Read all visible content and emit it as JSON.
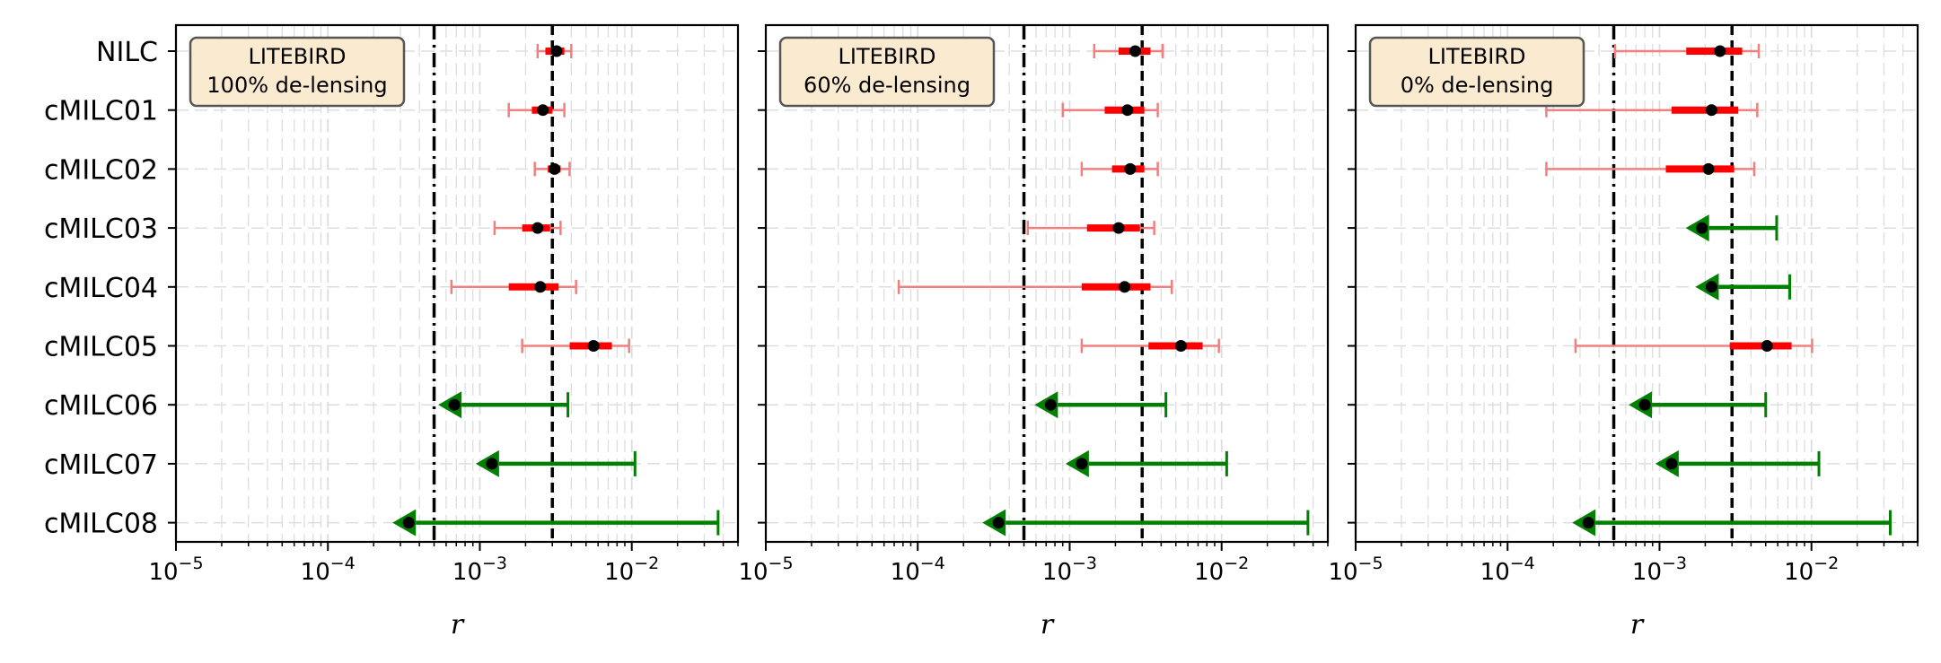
{
  "chart_data": {
    "type": "errorbar",
    "xscale": "log",
    "xlim": [
      1e-05,
      0.05
    ],
    "xticks": [
      {
        "value": 1e-05,
        "base": "10",
        "exp": "−5"
      },
      {
        "value": 0.0001,
        "base": "10",
        "exp": "−4"
      },
      {
        "value": 0.001,
        "base": "10",
        "exp": "−3"
      },
      {
        "value": 0.01,
        "base": "10",
        "exp": "−2"
      }
    ],
    "xlabel": "r",
    "categories": [
      "NILC",
      "cMILC01",
      "cMILC02",
      "cMILC03",
      "cMILC04",
      "cMILC05",
      "cMILC06",
      "cMILC07",
      "cMILC08"
    ],
    "grid": true,
    "colors": {
      "detection_bar": "#ff0000",
      "detection_bar_light": "#f08080",
      "upper_limit": "#008000",
      "point": "#000000",
      "box_fill": "#faebd0",
      "box_edge": "#555555"
    },
    "reference_lines": [
      {
        "value": 0.0005,
        "style": "dash-dot"
      },
      {
        "value": 0.003,
        "style": "dashed"
      }
    ],
    "panels": [
      {
        "box_label": [
          "LITEBIRD",
          "100% de-lensing"
        ],
        "entries": [
          {
            "category": "NILC",
            "kind": "detection",
            "value": 0.0032,
            "sigma1": [
              0.0027,
              0.0036
            ],
            "sigma2": [
              0.0024,
              0.004
            ]
          },
          {
            "category": "cMILC01",
            "kind": "detection",
            "value": 0.0026,
            "sigma1": [
              0.0022,
              0.003
            ],
            "sigma2": [
              0.00155,
              0.0036
            ]
          },
          {
            "category": "cMILC02",
            "kind": "detection",
            "value": 0.0031,
            "sigma1": [
              0.0028,
              0.0034
            ],
            "sigma2": [
              0.0023,
              0.0039
            ]
          },
          {
            "category": "cMILC03",
            "kind": "detection",
            "value": 0.0024,
            "sigma1": [
              0.0019,
              0.0029
            ],
            "sigma2": [
              0.00125,
              0.0034
            ]
          },
          {
            "category": "cMILC04",
            "kind": "detection",
            "value": 0.0025,
            "sigma1": [
              0.00155,
              0.0033
            ],
            "sigma2": [
              0.00065,
              0.0043
            ]
          },
          {
            "category": "cMILC05",
            "kind": "detection",
            "value": 0.0056,
            "sigma1": [
              0.0039,
              0.0074
            ],
            "sigma2": [
              0.0019,
              0.0096
            ]
          },
          {
            "category": "cMILC06",
            "kind": "upper_limit",
            "value": 0.00068,
            "limit": 0.0038
          },
          {
            "category": "cMILC07",
            "kind": "upper_limit",
            "value": 0.0012,
            "limit": 0.0105
          },
          {
            "category": "cMILC08",
            "kind": "upper_limit",
            "value": 0.00034,
            "limit": 0.037
          }
        ]
      },
      {
        "box_label": [
          "LITEBIRD",
          "60% de-lensing"
        ],
        "entries": [
          {
            "category": "NILC",
            "kind": "detection",
            "value": 0.0027,
            "sigma1": [
              0.0021,
              0.0034
            ],
            "sigma2": [
              0.00145,
              0.0041
            ]
          },
          {
            "category": "cMILC01",
            "kind": "detection",
            "value": 0.0024,
            "sigma1": [
              0.0017,
              0.0031
            ],
            "sigma2": [
              0.0009,
              0.0038
            ]
          },
          {
            "category": "cMILC02",
            "kind": "detection",
            "value": 0.0025,
            "sigma1": [
              0.0019,
              0.0031
            ],
            "sigma2": [
              0.0012,
              0.0038
            ]
          },
          {
            "category": "cMILC03",
            "kind": "detection",
            "value": 0.0021,
            "sigma1": [
              0.0013,
              0.0029
            ],
            "sigma2": [
              0.00053,
              0.0036
            ]
          },
          {
            "category": "cMILC04",
            "kind": "detection",
            "value": 0.0023,
            "sigma1": [
              0.0012,
              0.0034
            ],
            "sigma2": [
              7.5e-05,
              0.0047
            ]
          },
          {
            "category": "cMILC05",
            "kind": "detection",
            "value": 0.0054,
            "sigma1": [
              0.0033,
              0.0075
            ],
            "sigma2": [
              0.0012,
              0.0096
            ]
          },
          {
            "category": "cMILC06",
            "kind": "upper_limit",
            "value": 0.00075,
            "limit": 0.0043
          },
          {
            "category": "cMILC07",
            "kind": "upper_limit",
            "value": 0.0012,
            "limit": 0.0108
          },
          {
            "category": "cMILC08",
            "kind": "upper_limit",
            "value": 0.00034,
            "limit": 0.037
          }
        ]
      },
      {
        "box_label": [
          "LITEBIRD",
          "0% de-lensing"
        ],
        "entries": [
          {
            "category": "NILC",
            "kind": "detection",
            "value": 0.0025,
            "sigma1": [
              0.0015,
              0.0035
            ],
            "sigma2": [
              0.00051,
              0.0045
            ]
          },
          {
            "category": "cMILC01",
            "kind": "detection",
            "value": 0.0022,
            "sigma1": [
              0.0012,
              0.0033
            ],
            "sigma2": [
              0.00018,
              0.0044
            ]
          },
          {
            "category": "cMILC02",
            "kind": "detection",
            "value": 0.0021,
            "sigma1": [
              0.0011,
              0.0031
            ],
            "sigma2": [
              0.00018,
              0.0042
            ]
          },
          {
            "category": "cMILC03",
            "kind": "upper_limit",
            "value": 0.0019,
            "limit": 0.0059
          },
          {
            "category": "cMILC04",
            "kind": "upper_limit",
            "value": 0.0022,
            "limit": 0.0072
          },
          {
            "category": "cMILC05",
            "kind": "detection",
            "value": 0.0051,
            "sigma1": [
              0.0029,
              0.0074
            ],
            "sigma2": [
              0.00028,
              0.0101
            ]
          },
          {
            "category": "cMILC06",
            "kind": "upper_limit",
            "value": 0.0008,
            "limit": 0.005
          },
          {
            "category": "cMILC07",
            "kind": "upper_limit",
            "value": 0.0012,
            "limit": 0.0112
          },
          {
            "category": "cMILC08",
            "kind": "upper_limit",
            "value": 0.00034,
            "limit": 0.033
          }
        ]
      }
    ]
  }
}
